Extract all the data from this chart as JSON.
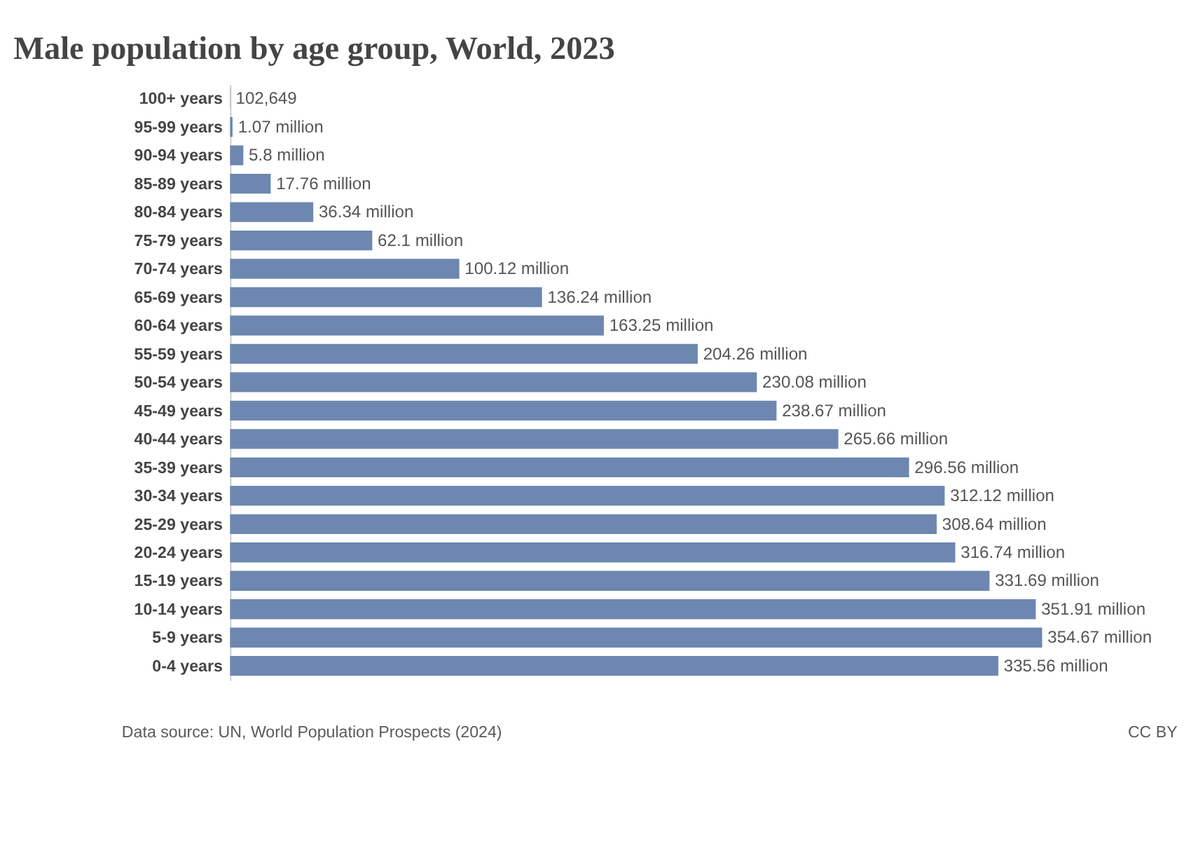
{
  "chart_data": {
    "type": "bar",
    "orientation": "horizontal",
    "title": "Male population by age group, World, 2023",
    "categories": [
      "100+ years",
      "95-99 years",
      "90-94 years",
      "85-89 years",
      "80-84 years",
      "75-79 years",
      "70-74 years",
      "65-69 years",
      "60-64 years",
      "55-59 years",
      "50-54 years",
      "45-49 years",
      "40-44 years",
      "35-39 years",
      "30-34 years",
      "25-29 years",
      "20-24 years",
      "15-19 years",
      "10-14 years",
      "5-9 years",
      "0-4 years"
    ],
    "values": [
      102649,
      1070000,
      5800000,
      17760000,
      36340000,
      62100000,
      100120000,
      136240000,
      163250000,
      204260000,
      230080000,
      238670000,
      265660000,
      296560000,
      312120000,
      308640000,
      316740000,
      331690000,
      351910000,
      354670000,
      335560000
    ],
    "value_labels": [
      "102,649",
      "1.07 million",
      "5.8 million",
      "17.76 million",
      "36.34 million",
      "62.1 million",
      "100.12 million",
      "136.24 million",
      "163.25 million",
      "204.26 million",
      "230.08 million",
      "238.67 million",
      "265.66 million",
      "296.56 million",
      "312.12 million",
      "308.64 million",
      "316.74 million",
      "331.69 million",
      "351.91 million",
      "354.67 million",
      "335.56 million"
    ],
    "color": "#6d87b0",
    "grid": false,
    "tick_labels": "y",
    "annotations": [
      "Data source: UN, World Population Prospects (2024)",
      "CC BY"
    ]
  }
}
